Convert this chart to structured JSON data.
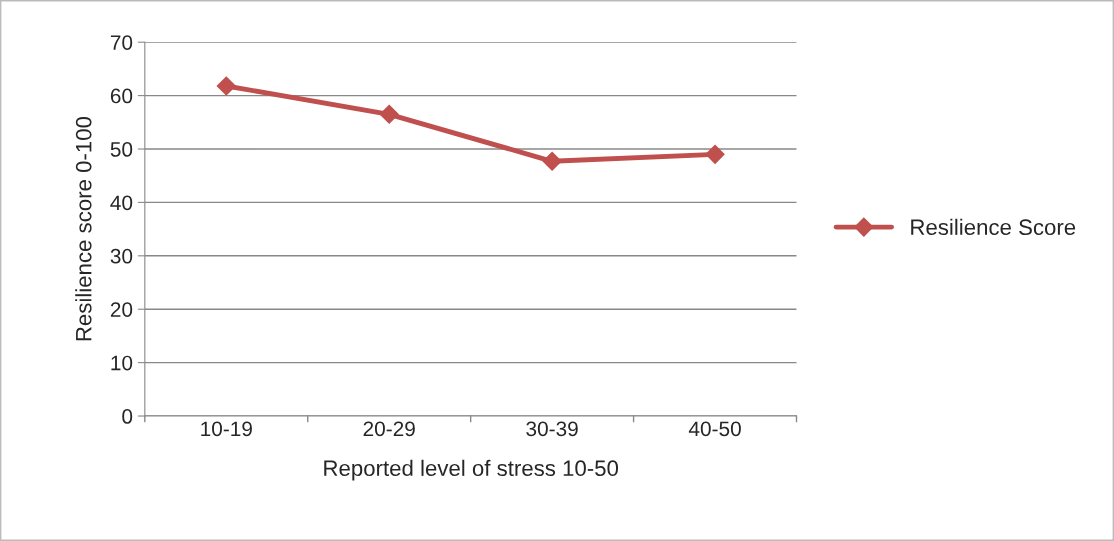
{
  "chart_data": {
    "type": "line",
    "xlabel": "Reported level of stress 10-50",
    "ylabel": "Resilience score 0-100",
    "categories": [
      "10-19",
      "20-29",
      "30-39",
      "40-50"
    ],
    "series": [
      {
        "name": "Resilience Score",
        "color": "#c0504d",
        "values": [
          61.8,
          56.5,
          47.7,
          49.0
        ]
      }
    ],
    "ylim": [
      0,
      70
    ],
    "yticks": [
      0,
      10,
      20,
      30,
      40,
      50,
      60,
      70
    ],
    "grid": "y",
    "legend": "right",
    "marker": "diamond",
    "line_style": "solid"
  }
}
